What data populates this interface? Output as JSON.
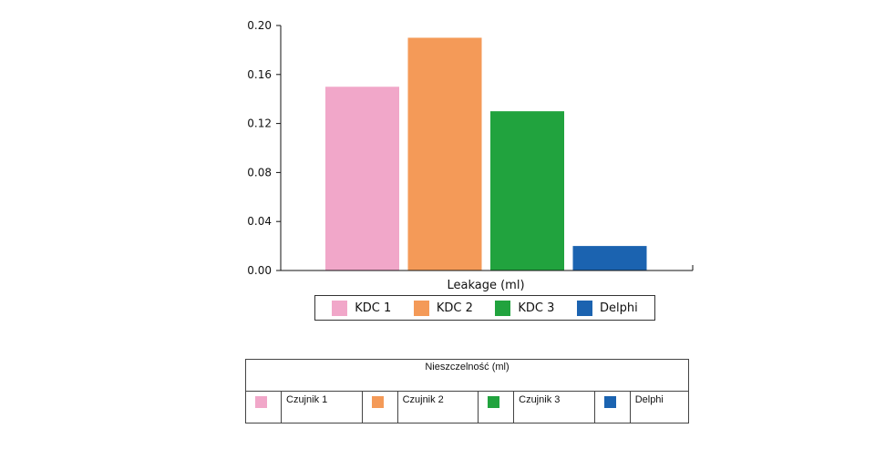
{
  "chart_data": {
    "type": "bar",
    "title": "",
    "xlabel": "Leakage (ml)",
    "ylabel": "",
    "ylim": [
      0,
      0.2
    ],
    "yticks": [
      "0.00",
      "0.04",
      "0.08",
      "0.12",
      "0.16",
      "0.20"
    ],
    "categories": [
      "KDC 1",
      "KDC 2",
      "KDC 3",
      "Delphi"
    ],
    "values": [
      0.15,
      0.19,
      0.13,
      0.02
    ],
    "colors": [
      "#f1a7c9",
      "#f49a58",
      "#21a33e",
      "#1b63b0"
    ],
    "legend": [
      "KDC 1",
      "KDC 2",
      "KDC 3",
      "Delphi"
    ]
  },
  "table": {
    "title": "Nieszczelność (ml)",
    "items": [
      {
        "label": "Czujnik 1",
        "color": "#f1a7c9"
      },
      {
        "label": "Czujnik 2",
        "color": "#f49a58"
      },
      {
        "label": "Czujnik 3",
        "color": "#21a33e"
      },
      {
        "label": "Delphi",
        "color": "#1b63b0"
      }
    ]
  }
}
